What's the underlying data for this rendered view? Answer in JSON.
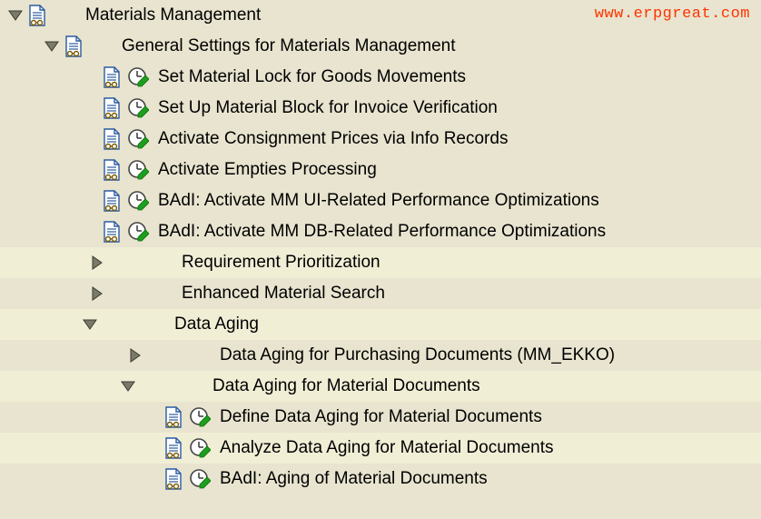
{
  "watermark": "www.erpgreat.com",
  "colors": {
    "bg": "#e8e4cf",
    "alt_bg": "#f1eed6",
    "text": "#000000",
    "watermark": "#ff3300",
    "arrow_fill": "#7a7a68",
    "arrow_stroke": "#3a3a30",
    "doc_fill": "#ffffff",
    "doc_stroke": "#2a5aa0",
    "doc_lines": "#2a5aa0",
    "glasses": "#7a5a00",
    "clock_face": "#ffffff",
    "clock_stroke": "#444444",
    "clock_check": "#1e9e1e"
  },
  "rows": [
    {
      "indent": 8,
      "arrow": "open",
      "doc": true,
      "clock": false,
      "label": "Materials Management",
      "alt": false
    },
    {
      "indent": 48,
      "arrow": "open",
      "doc": true,
      "clock": false,
      "label": "General Settings for Materials Management",
      "alt": false
    },
    {
      "indent": 112,
      "arrow": "none",
      "doc": true,
      "clock": true,
      "label": "Set Material Lock for Goods Movements",
      "alt": false
    },
    {
      "indent": 112,
      "arrow": "none",
      "doc": true,
      "clock": true,
      "label": "Set Up Material Block for Invoice Verification",
      "alt": false
    },
    {
      "indent": 112,
      "arrow": "none",
      "doc": true,
      "clock": true,
      "label": "Activate Consignment Prices via Info Records",
      "alt": false
    },
    {
      "indent": 112,
      "arrow": "none",
      "doc": true,
      "clock": true,
      "label": "Activate Empties Processing",
      "alt": false
    },
    {
      "indent": 112,
      "arrow": "none",
      "doc": true,
      "clock": true,
      "label": "BAdI: Activate MM UI-Related Performance Optimizations",
      "alt": false
    },
    {
      "indent": 112,
      "arrow": "none",
      "doc": true,
      "clock": true,
      "label": "BAdI: Activate MM DB-Related Performance Optimizations",
      "alt": false
    },
    {
      "indent": 98,
      "arrow": "closed",
      "doc": false,
      "clock": false,
      "label": "Requirement Prioritization",
      "alt": true
    },
    {
      "indent": 98,
      "arrow": "closed",
      "doc": false,
      "clock": false,
      "label": "Enhanced Material Search",
      "alt": false
    },
    {
      "indent": 90,
      "arrow": "open",
      "doc": false,
      "clock": false,
      "label": "Data Aging",
      "alt": true
    },
    {
      "indent": 140,
      "arrow": "closed",
      "doc": false,
      "clock": false,
      "label": "Data Aging for Purchasing Documents (MM_EKKO)",
      "alt": false
    },
    {
      "indent": 132,
      "arrow": "open",
      "doc": false,
      "clock": false,
      "label": "Data Aging for Material Documents",
      "alt": true
    },
    {
      "indent": 180,
      "arrow": "none",
      "doc": true,
      "clock": true,
      "label": "Define Data Aging for Material Documents",
      "alt": false
    },
    {
      "indent": 180,
      "arrow": "none",
      "doc": true,
      "clock": true,
      "label": "Analyze Data Aging for Material Documents",
      "alt": true
    },
    {
      "indent": 180,
      "arrow": "none",
      "doc": true,
      "clock": true,
      "label": "BAdI: Aging of Material Documents",
      "alt": false
    }
  ],
  "label_offset_no_icons": 80
}
